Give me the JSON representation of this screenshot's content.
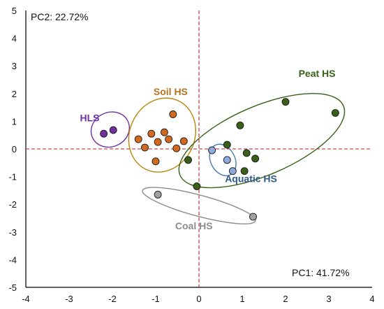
{
  "chart_data": {
    "type": "scatter",
    "title": "",
    "xlim": [
      -4,
      4
    ],
    "ylim": [
      -5,
      5
    ],
    "x_ticks": [
      "-4",
      "-3",
      "-2",
      "-1",
      "0",
      "1",
      "2",
      "3",
      "4"
    ],
    "y_ticks": [
      "5",
      "4",
      "3",
      "2",
      "1",
      "0",
      "-1",
      "-2",
      "-3",
      "-4",
      "-5"
    ],
    "pc1_label": "PC1: 41.72%",
    "pc2_label": "PC2: 22.72%",
    "reference_lines": {
      "x": 0,
      "y": 0,
      "color": "#b22222",
      "style": "dashed"
    },
    "grid": false,
    "series": [
      {
        "name": "HLS",
        "label_color": "#7030a0",
        "marker_color": "#7030a0",
        "ellipse_color": "#7030a0",
        "ellipse": {
          "cx": -2.05,
          "cy": 0.7,
          "rx": 0.45,
          "ry": 0.62,
          "angle": -25
        },
        "label_pos": [
          -2.75,
          1.0
        ],
        "points": [
          [
            -2.2,
            0.55
          ],
          [
            -1.98,
            0.68
          ]
        ]
      },
      {
        "name": "Soil HS",
        "label_color": "#b8711f",
        "marker_color": "#d2691e",
        "ellipse_color": "#b8860b",
        "ellipse": {
          "cx": -0.85,
          "cy": 0.5,
          "rx": 0.75,
          "ry": 1.37,
          "angle": 25
        },
        "label_pos": [
          -1.05,
          1.95
        ],
        "points": [
          [
            -0.6,
            1.25
          ],
          [
            -1.1,
            0.55
          ],
          [
            -0.8,
            0.6
          ],
          [
            -1.4,
            0.35
          ],
          [
            -0.95,
            0.25
          ],
          [
            -0.7,
            0.35
          ],
          [
            -1.25,
            0.05
          ],
          [
            -0.35,
            0.28
          ],
          [
            -1.0,
            -0.45
          ],
          [
            -0.52,
            0.02
          ]
        ]
      },
      {
        "name": "Peat HS",
        "label_color": "#3a5f1a",
        "marker_color": "#3a5f1a",
        "ellipse_color": "#3a5f1a",
        "ellipse": {
          "cx": 1.45,
          "cy": 0.3,
          "rx": 2.05,
          "ry": 1.25,
          "angle": -23
        },
        "label_pos": [
          2.3,
          2.6
        ],
        "points": [
          [
            2.0,
            1.7
          ],
          [
            3.15,
            1.3
          ],
          [
            0.95,
            0.85
          ],
          [
            -0.25,
            -0.4
          ],
          [
            0.65,
            0.15
          ],
          [
            1.1,
            -0.15
          ],
          [
            1.3,
            -0.35
          ],
          [
            1.05,
            -0.8
          ],
          [
            -0.05,
            -1.35
          ]
        ]
      },
      {
        "name": "Aquatic HS",
        "label_color": "#2e5a88",
        "marker_color": "#8faadc",
        "ellipse_color": "#4f7bb0",
        "ellipse": {
          "cx": 0.55,
          "cy": -0.4,
          "rx": 0.28,
          "ry": 0.6,
          "angle": -28
        },
        "label_pos": [
          0.6,
          -1.2
        ],
        "points": [
          [
            0.3,
            -0.05
          ],
          [
            0.65,
            -0.4
          ],
          [
            0.78,
            -0.8
          ]
        ]
      },
      {
        "name": "Coal HS",
        "label_color": "#8c8c8c",
        "marker_color": "#a0a0a0",
        "ellipse_color": "#8c8c8c",
        "ellipse": {
          "cx": 0.0,
          "cy": -2.05,
          "rx": 1.35,
          "ry": 0.38,
          "angle": 15
        },
        "label_pos": [
          -0.55,
          -2.9
        ],
        "points": [
          [
            -0.95,
            -1.65
          ],
          [
            1.25,
            -2.45
          ]
        ]
      }
    ]
  }
}
